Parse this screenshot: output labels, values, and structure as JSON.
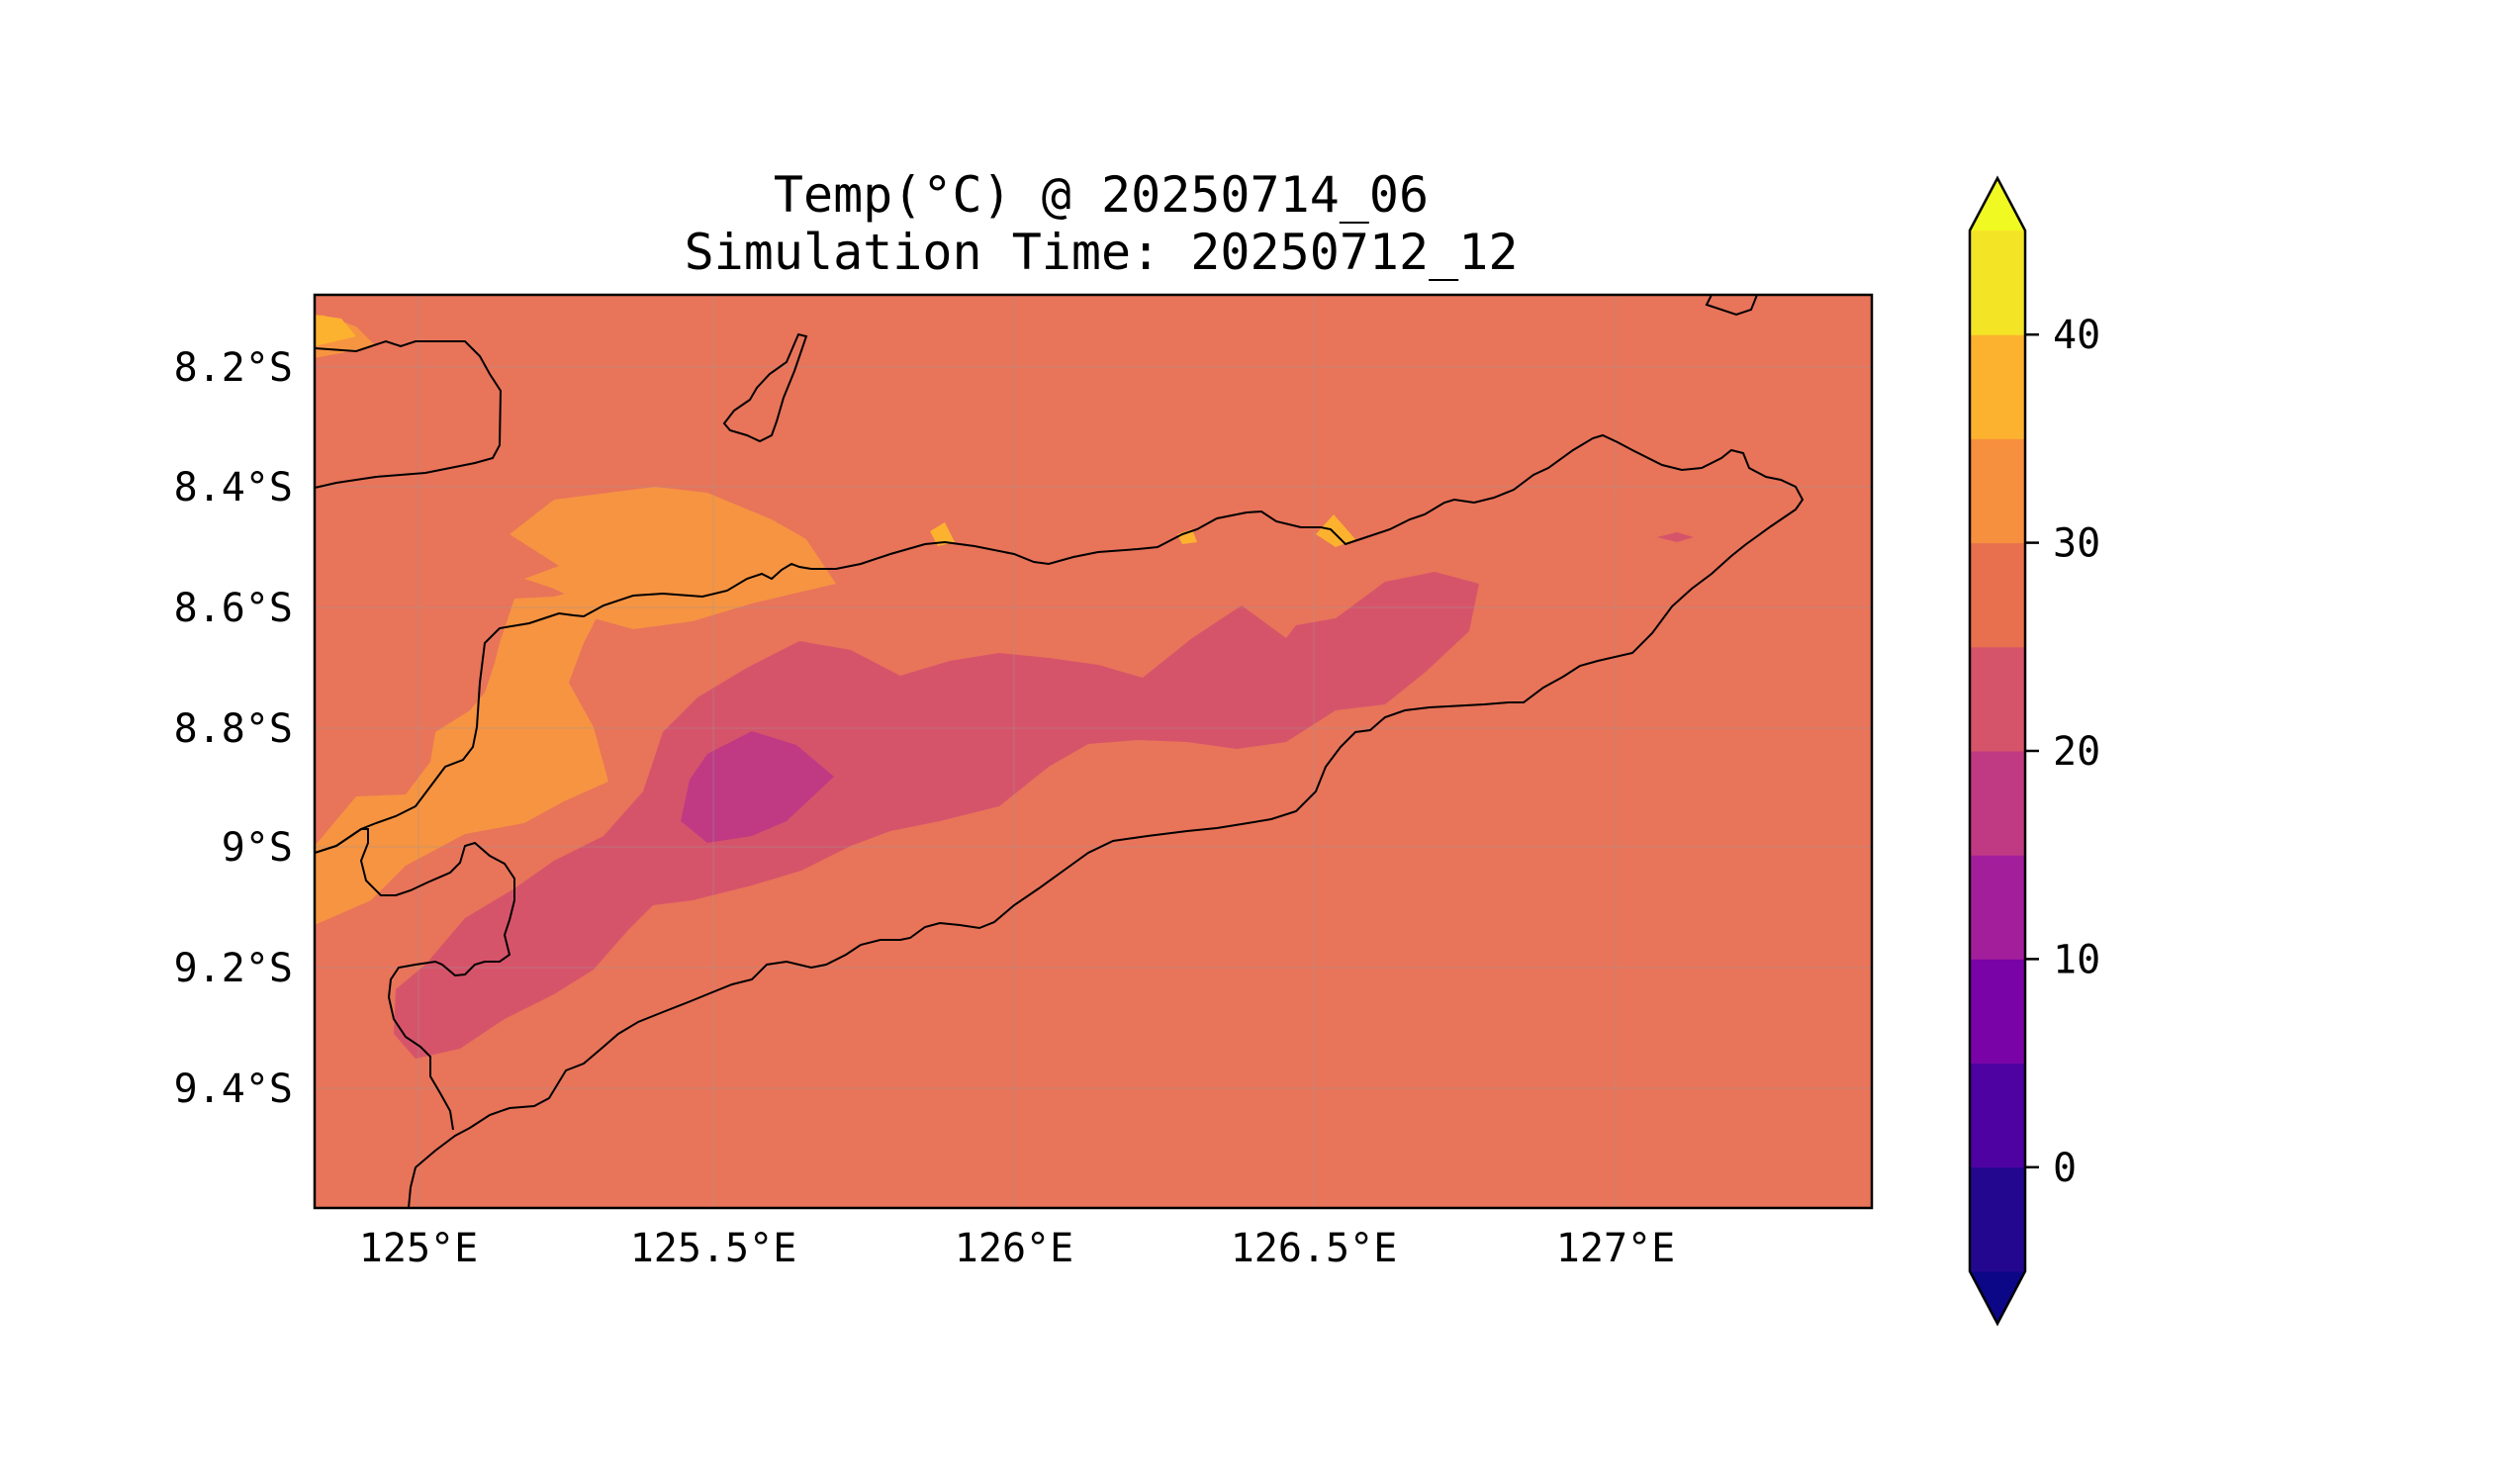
{
  "title": {
    "line1": "Temp(°C) @ 20250714_06",
    "line2": "Simulation Time: 20250712_12"
  },
  "map": {
    "lon_range": [
      124.82,
      127.42
    ],
    "lat_range": [
      -9.6,
      -8.08
    ],
    "x_ticks": [
      "125°E",
      "125.5°E",
      "126°E",
      "126.5°E",
      "127°E"
    ],
    "x_tick_values": [
      125.0,
      125.5,
      126.0,
      126.5,
      127.0
    ],
    "y_ticks": [
      "8.2°S",
      "8.4°S",
      "8.6°S",
      "8.8°S",
      "9°S",
      "9.2°S",
      "9.4°S"
    ],
    "y_tick_values": [
      -8.2,
      -8.4,
      -8.6,
      -8.8,
      -9.0,
      -9.2,
      -9.4
    ],
    "gridlines": true,
    "background_level": "25-30 °C"
  },
  "colorbar": {
    "ticks": [
      "40",
      "30",
      "20",
      "10",
      "0"
    ],
    "tick_values": [
      40,
      30,
      20,
      10,
      0
    ],
    "levels": [
      -5,
      0,
      5,
      10,
      15,
      20,
      25,
      30,
      35,
      40,
      45
    ],
    "colors": [
      "#24078f",
      "#4e02a1",
      "#7a03a8",
      "#a21e9b",
      "#c03a83",
      "#d6546a",
      "#e8704f",
      "#f68f3e",
      "#fdb22f",
      "#f4e426"
    ],
    "under_color": "#0c0787",
    "over_color": "#f0f921",
    "extend": "both"
  },
  "colors": {
    "level_25_30": "#e8745a",
    "level_30_35": "#f69442",
    "level_35_40": "#fdb22f",
    "level_20_25": "#d6546a",
    "level_15_20": "#c03a83",
    "coastline": "#000000"
  }
}
